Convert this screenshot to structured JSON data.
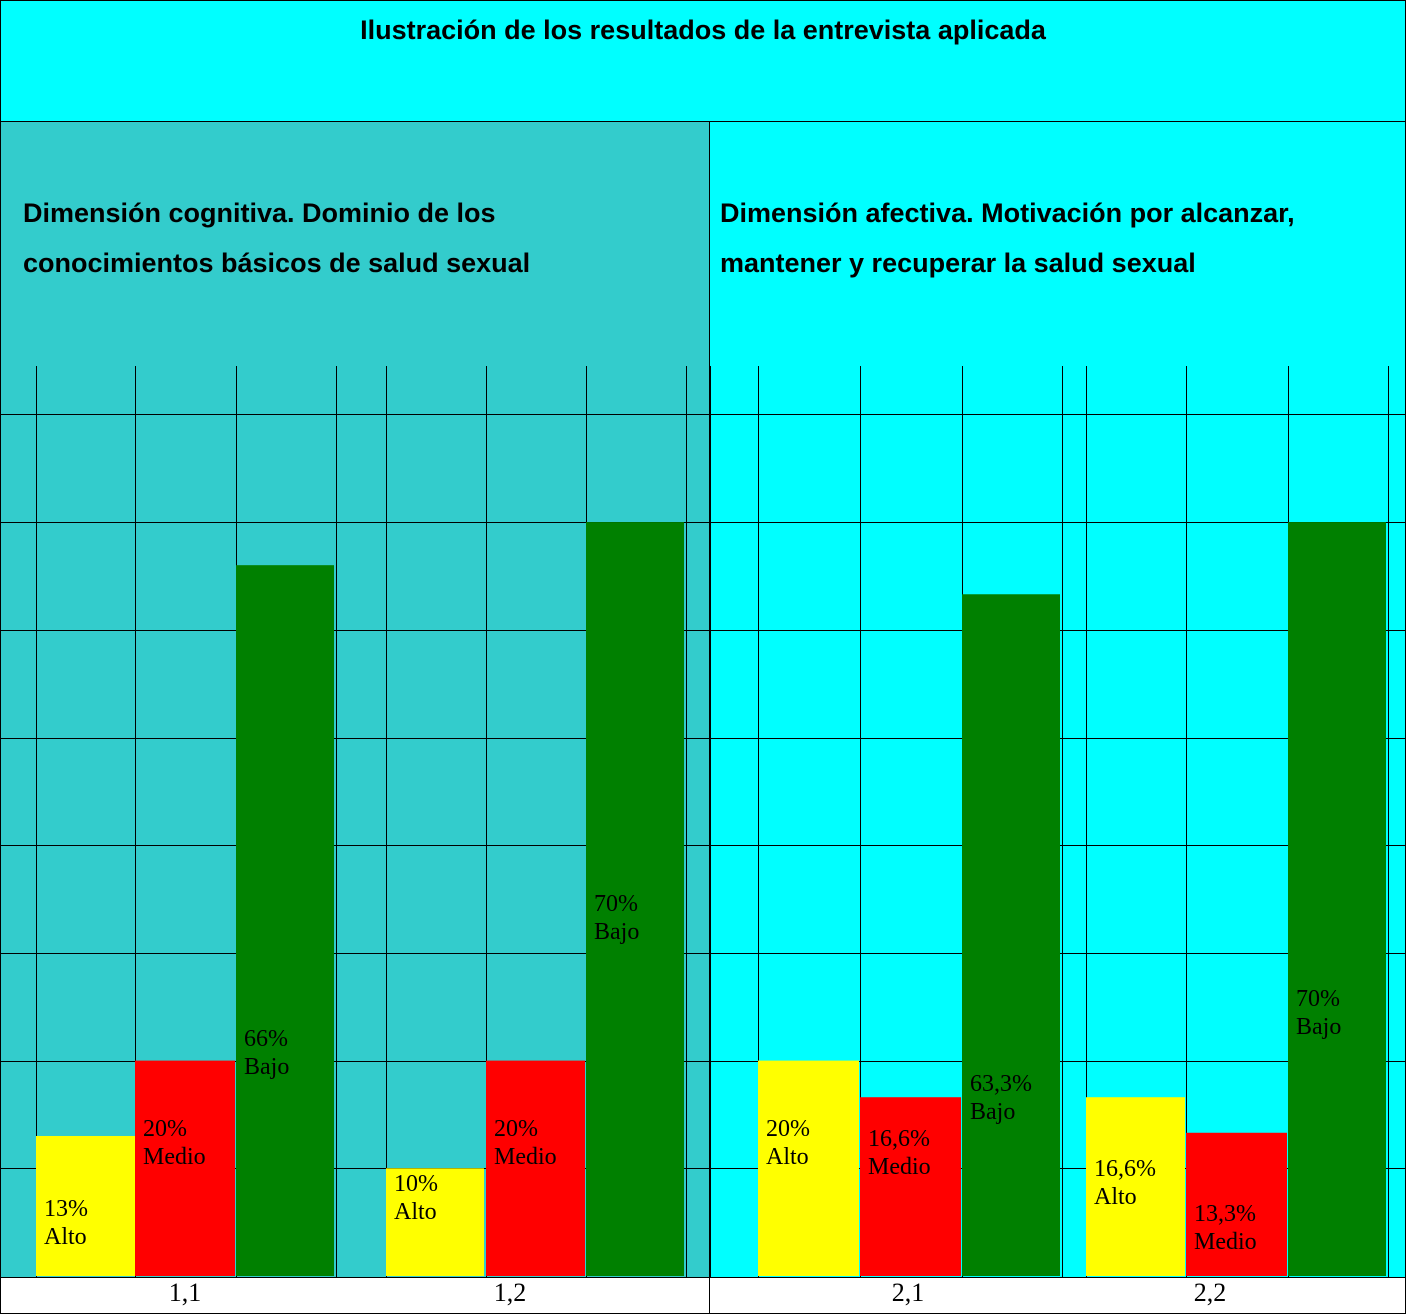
{
  "title": "Ilustración de los resultados de la entrevista aplicada",
  "panels": [
    {
      "heading_lines": [
        "Dimensión cognitiva. Dominio de los",
        "conocimientos básicos de salud sexual"
      ],
      "background": "#33cccc"
    },
    {
      "heading_lines": [
        "Dimensión afectiva. Motivación por alcanzar,",
        "mantener y recuperar la salud sexual"
      ],
      "background": "#00ffff"
    }
  ],
  "colors": {
    "alto": "#ffff00",
    "medio": "#ff0000",
    "bajo": "#008000",
    "grid": "#000000"
  },
  "chart_data": {
    "type": "bar",
    "categories": [
      "1,1",
      "1,2",
      "2,1",
      "2,2"
    ],
    "ylim": [
      0,
      90
    ],
    "series": [
      {
        "name": "Alto",
        "values": [
          13,
          10,
          20,
          16.6
        ],
        "labels": [
          "13%",
          "10%",
          "20%",
          "16,6%"
        ],
        "word": "Alto"
      },
      {
        "name": "Medio",
        "values": [
          20,
          20,
          16.6,
          13.3
        ],
        "labels": [
          "20%",
          "20%",
          "16,6%",
          "13,3%"
        ],
        "word": "Medio"
      },
      {
        "name": "Bajo",
        "values": [
          66,
          70,
          63.3,
          70
        ],
        "labels": [
          "66%",
          "70%",
          "63,3%",
          "70%"
        ],
        "word": "Bajo"
      }
    ]
  }
}
